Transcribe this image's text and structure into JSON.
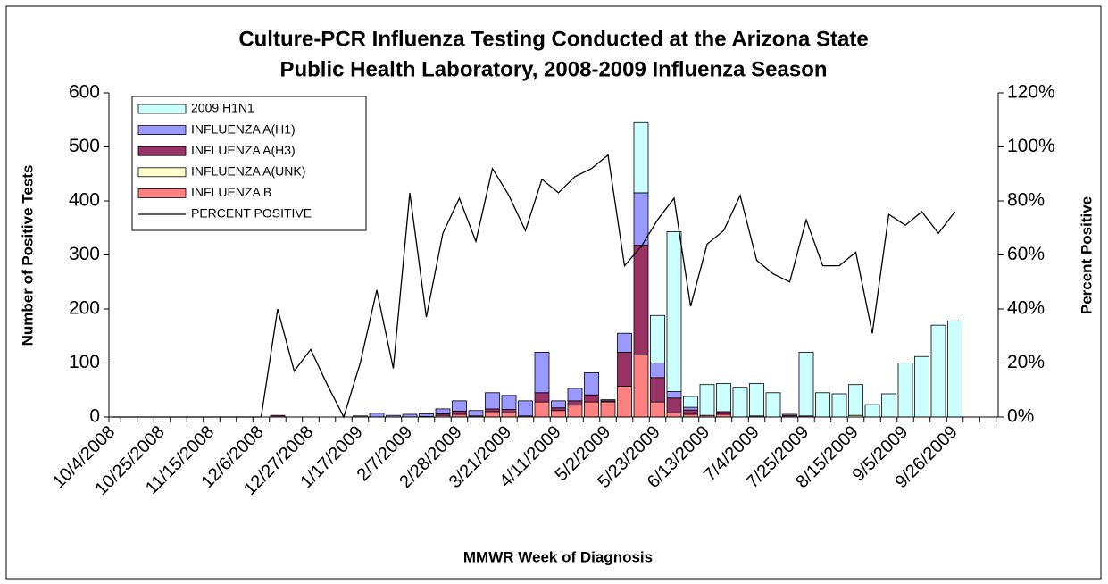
{
  "chart_data": {
    "type": "bar",
    "stacked": true,
    "title": [
      "Culture-PCR Influenza Testing Conducted at the Arizona State",
      "Public Health Laboratory, 2008-2009 Influenza Season"
    ],
    "xlabel": "MMWR Week of Diagnosis",
    "ylabel": "Number of Positive Tests",
    "y2label": "Percent Positive",
    "categories": [
      "10/4/2008",
      null,
      null,
      "10/25/2008",
      null,
      null,
      "11/15/2008",
      null,
      null,
      "12/6/2008",
      null,
      null,
      "12/27/2008",
      null,
      null,
      "1/17/2009",
      null,
      null,
      "2/7/2009",
      null,
      null,
      "2/28/2009",
      null,
      null,
      "3/21/2009",
      null,
      null,
      "4/11/2009",
      null,
      null,
      "5/2/2009",
      null,
      null,
      "5/23/2009",
      null,
      null,
      "6/13/2009",
      null,
      null,
      "7/4/2009",
      null,
      null,
      "7/25/2009",
      null,
      null,
      "8/15/2009",
      null,
      null,
      "9/5/2009",
      null,
      null,
      "9/26/2009",
      null,
      null
    ],
    "series": [
      {
        "name": "2009 H1N1",
        "color": "#ccffff",
        "values": [
          0,
          0,
          0,
          0,
          0,
          0,
          0,
          0,
          0,
          0,
          0,
          0,
          0,
          0,
          0,
          0,
          0,
          0,
          0,
          0,
          0,
          0,
          0,
          0,
          0,
          0,
          0,
          0,
          0,
          0,
          0,
          0,
          130,
          88,
          296,
          20,
          57,
          52,
          55,
          60,
          45,
          2,
          118,
          45,
          43,
          57,
          23,
          43,
          100,
          112,
          170,
          178,
          0,
          0
        ]
      },
      {
        "name": "INFLUENZA A(H1)",
        "color": "#9999ff",
        "values": [
          0,
          0,
          0,
          0,
          0,
          0,
          0,
          0,
          0,
          0,
          0,
          0,
          0,
          0,
          0,
          2,
          7,
          3,
          5,
          5,
          9,
          19,
          10,
          30,
          26,
          28,
          75,
          13,
          23,
          41,
          2,
          35,
          97,
          27,
          12,
          5,
          0,
          0,
          0,
          0,
          0,
          0,
          0,
          0,
          0,
          0,
          0,
          0,
          0,
          0,
          0,
          0,
          0,
          0
        ]
      },
      {
        "name": "INFLUENZA A(H3)",
        "color": "#993366",
        "values": [
          0,
          0,
          0,
          0,
          0,
          0,
          0,
          0,
          0,
          0,
          3,
          0,
          0,
          0,
          0,
          0,
          0,
          0,
          0,
          1,
          3,
          6,
          0,
          5,
          6,
          0,
          17,
          5,
          8,
          13,
          2,
          63,
          203,
          45,
          27,
          8,
          0,
          5,
          0,
          0,
          0,
          3,
          0,
          0,
          0,
          0,
          0,
          0,
          0,
          0,
          0,
          0,
          0,
          0
        ]
      },
      {
        "name": "INFLUENZA A(UNK)",
        "color": "#ffffcc",
        "values": [
          0,
          0,
          0,
          0,
          0,
          0,
          0,
          0,
          0,
          0,
          0,
          0,
          0,
          0,
          0,
          0,
          0,
          0,
          0,
          0,
          0,
          0,
          0,
          0,
          0,
          0,
          0,
          0,
          0,
          0,
          0,
          0,
          0,
          0,
          0,
          0,
          0,
          0,
          0,
          0,
          0,
          0,
          0,
          0,
          0,
          3,
          0,
          0,
          0,
          0,
          0,
          0,
          0,
          0
        ]
      },
      {
        "name": "INFLUENZA B",
        "color": "#ff8080",
        "values": [
          0,
          0,
          0,
          0,
          0,
          0,
          0,
          0,
          0,
          0,
          0,
          0,
          0,
          0,
          0,
          0,
          0,
          0,
          0,
          0,
          3,
          5,
          2,
          10,
          8,
          2,
          28,
          12,
          22,
          28,
          28,
          57,
          115,
          28,
          8,
          5,
          3,
          5,
          0,
          2,
          0,
          0,
          2,
          0,
          0,
          0,
          0,
          0,
          0,
          0,
          0,
          0,
          0,
          0
        ]
      },
      {
        "name": "PERCENT POSITIVE",
        "color": "#000000",
        "type": "line",
        "axis": "y2",
        "values": [
          0,
          0,
          0,
          0,
          0,
          0,
          0,
          0,
          0,
          0,
          40,
          17,
          25,
          12,
          0,
          20,
          47,
          18,
          83,
          37,
          68,
          81,
          65,
          92,
          82,
          69,
          88,
          83,
          89,
          92,
          97,
          56,
          63,
          73,
          81,
          41,
          64,
          69,
          82,
          58,
          53,
          50,
          73,
          56,
          56,
          61,
          31,
          75,
          71,
          76,
          68,
          76,
          null,
          null
        ]
      }
    ],
    "ylim": [
      0,
      600
    ],
    "yticks": [
      0,
      100,
      200,
      300,
      400,
      500,
      600
    ],
    "y2lim": [
      0,
      120
    ],
    "y2ticks": [
      {
        "value": 0,
        "label": "0%"
      },
      {
        "value": 20,
        "label": "20%"
      },
      {
        "value": 40,
        "label": "40%"
      },
      {
        "value": 60,
        "label": "60%"
      },
      {
        "value": 80,
        "label": "80%"
      },
      {
        "value": 100,
        "label": "100%"
      },
      {
        "value": 120,
        "label": "120%"
      }
    ],
    "grid": false,
    "legend": "upper left"
  }
}
